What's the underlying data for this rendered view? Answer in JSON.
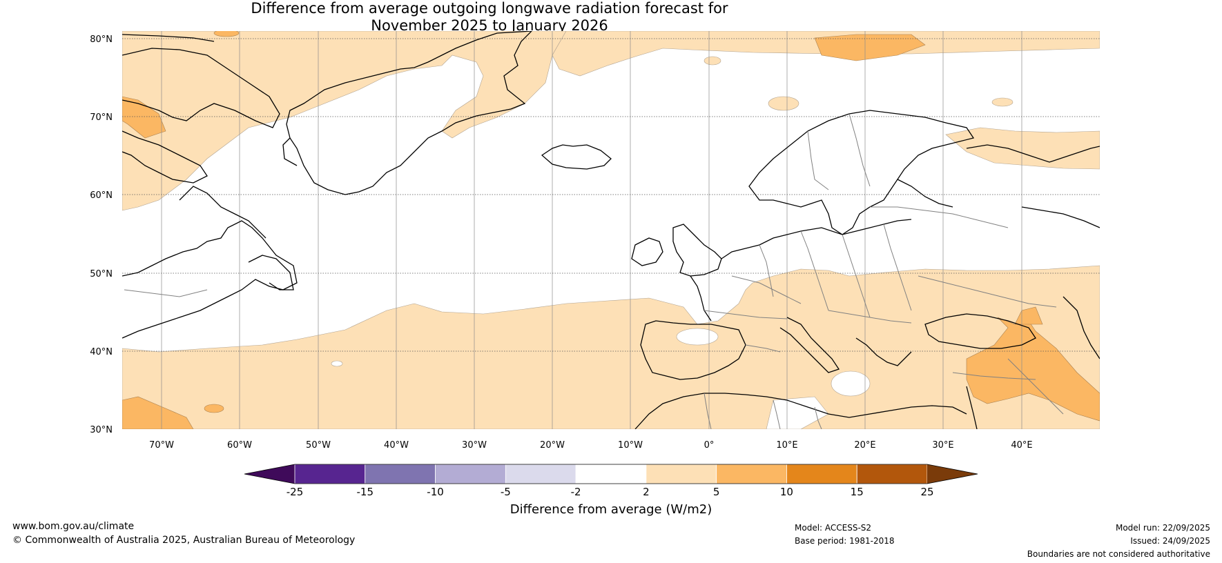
{
  "title": {
    "line1": "Difference from average outgoing longwave radiation forecast for",
    "line2": "November 2025 to January 2026"
  },
  "map": {
    "lat_ticks": [
      "80°N",
      "70°N",
      "60°N",
      "50°N",
      "40°N",
      "30°N"
    ],
    "lon_ticks": [
      "70°W",
      "60°W",
      "50°W",
      "40°W",
      "30°W",
      "20°W",
      "10°W",
      "0°",
      "10°E",
      "20°E",
      "30°E",
      "40°E"
    ],
    "extent": {
      "lon_min": -75,
      "lon_max": 50,
      "lat_min": 30,
      "lat_max": 81
    }
  },
  "colorbar": {
    "tick_labels": [
      "-25",
      "-15",
      "-10",
      "-5",
      "-2",
      "2",
      "5",
      "10",
      "15",
      "25"
    ],
    "colors": [
      "#3f0a5a",
      "#572590",
      "#7f74b0",
      "#b3acd4",
      "#dbdaec",
      "#ffffff",
      "#fde0b6",
      "#fbb763",
      "#e4861b",
      "#b2570c",
      "#7a3b0a"
    ],
    "label": "Difference from average (W/m2)"
  },
  "footer": {
    "website": "www.bom.gov.au/climate",
    "copyright": "© Commonwealth of Australia 2025, Australian Bureau of Meteorology",
    "model": "Model: ACCESS-S2",
    "base_period": "Base period: 1981-2018",
    "model_run": "Model run: 22/09/2025",
    "issued": "Issued: 24/09/2025",
    "disclaimer": "Boundaries are not considered authoritative"
  }
}
